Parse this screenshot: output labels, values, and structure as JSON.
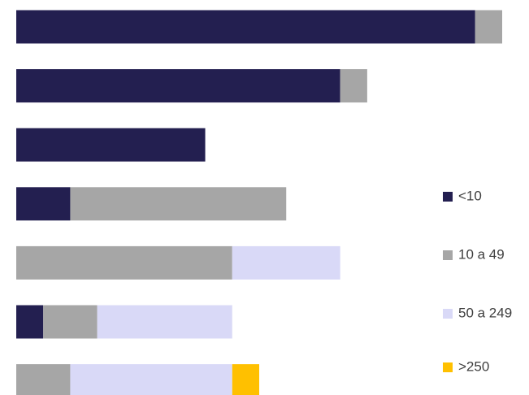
{
  "chart_data": {
    "type": "stacked-bar-horizontal",
    "categories": [
      null,
      null,
      null,
      null,
      null,
      null,
      null
    ],
    "series": [
      {
        "name": "<10",
        "color": "#231f50",
        "values": [
          17,
          12,
          7,
          2,
          0,
          1,
          0
        ]
      },
      {
        "name": "10 a 49",
        "color": "#a6a6a6",
        "values": [
          1,
          1,
          0,
          8,
          8,
          2,
          2
        ]
      },
      {
        "name": "50 a 249",
        "color": "#d9d9f7",
        "values": [
          0,
          0,
          0,
          0,
          4,
          5,
          6
        ]
      },
      {
        "name": ">250",
        "color": "#ffc000",
        "values": [
          0,
          0,
          0,
          0,
          0,
          0,
          1
        ]
      }
    ],
    "xlim": [
      0,
      18
    ],
    "legend": "right"
  }
}
